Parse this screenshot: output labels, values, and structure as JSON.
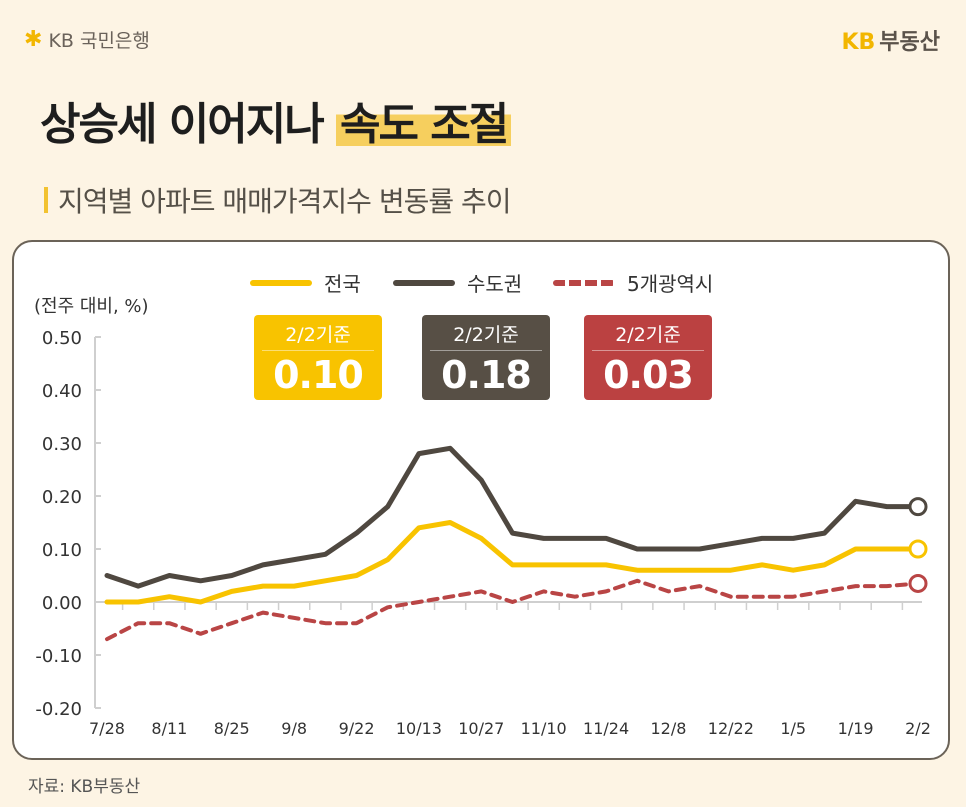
{
  "header": {
    "bank_logo": "KB 국민은행",
    "brand_logo_kb": "KB",
    "brand_logo_text": "부동산",
    "title_plain": "상승세 이어지나",
    "title_highlight": "속도 조절",
    "subtitle": "지역별 아파트 매매가격지수 변동률 추이"
  },
  "source": "자료: KB부동산",
  "colors": {
    "national": "#f8c300",
    "capital": "#4f4840",
    "metro5": "#b94545",
    "background": "#fdf4e4"
  },
  "badges": [
    {
      "label": "2/2기준",
      "value": "0.10",
      "color": "#f8c300"
    },
    {
      "label": "2/2기준",
      "value": "0.18",
      "color": "#574f45"
    },
    {
      "label": "2/2기준",
      "value": "0.03",
      "color": "#bb4141"
    }
  ],
  "chart_data": {
    "type": "line",
    "title": "",
    "unit_label": "(전주 대비, %)",
    "ylim": [
      -0.2,
      0.5
    ],
    "yticks": [
      "0.50",
      "0.40",
      "0.30",
      "0.20",
      "0.10",
      "0.00",
      "-0.10",
      "-0.20"
    ],
    "ytick_values": [
      0.5,
      0.4,
      0.3,
      0.2,
      0.1,
      0.0,
      -0.1,
      -0.2
    ],
    "x": [
      "7/28",
      "8/4",
      "8/11",
      "8/18",
      "8/25",
      "9/1",
      "9/8",
      "9/15",
      "9/22",
      "9/29",
      "10/13",
      "10/20",
      "10/27",
      "11/3",
      "11/10",
      "11/17",
      "11/24",
      "12/1",
      "12/8",
      "12/15",
      "12/22",
      "12/29",
      "1/5",
      "1/12",
      "1/19",
      "1/26",
      "2/2"
    ],
    "xtick_labels": [
      "7/28",
      "8/11",
      "8/25",
      "9/8",
      "9/22",
      "10/13",
      "10/27",
      "11/10",
      "11/24",
      "12/8",
      "12/22",
      "1/5",
      "1/19",
      "2/2"
    ],
    "legend_position": "top",
    "grid": false,
    "series": [
      {
        "name": "전국",
        "style": "solid",
        "color": "#f8c300",
        "values": [
          0.0,
          0.0,
          0.01,
          0.0,
          0.02,
          0.03,
          0.03,
          0.04,
          0.05,
          0.08,
          0.14,
          0.15,
          0.12,
          0.07,
          0.07,
          0.07,
          0.07,
          0.06,
          0.06,
          0.06,
          0.06,
          0.07,
          0.06,
          0.07,
          0.1,
          0.1,
          0.1
        ]
      },
      {
        "name": "수도권",
        "style": "solid",
        "color": "#4f4840",
        "values": [
          0.05,
          0.03,
          0.05,
          0.04,
          0.05,
          0.07,
          0.08,
          0.09,
          0.13,
          0.18,
          0.28,
          0.29,
          0.23,
          0.13,
          0.12,
          0.12,
          0.12,
          0.1,
          0.1,
          0.1,
          0.11,
          0.12,
          0.12,
          0.13,
          0.19,
          0.18,
          0.18
        ]
      },
      {
        "name": "5개광역시",
        "style": "dashed",
        "color": "#b94545",
        "values": [
          -0.07,
          -0.04,
          -0.04,
          -0.06,
          -0.04,
          -0.02,
          -0.03,
          -0.04,
          -0.04,
          -0.01,
          0.0,
          0.01,
          0.02,
          0.0,
          0.02,
          0.01,
          0.02,
          0.04,
          0.02,
          0.03,
          0.01,
          0.01,
          0.01,
          0.02,
          0.03,
          0.03,
          0.035
        ]
      }
    ]
  }
}
